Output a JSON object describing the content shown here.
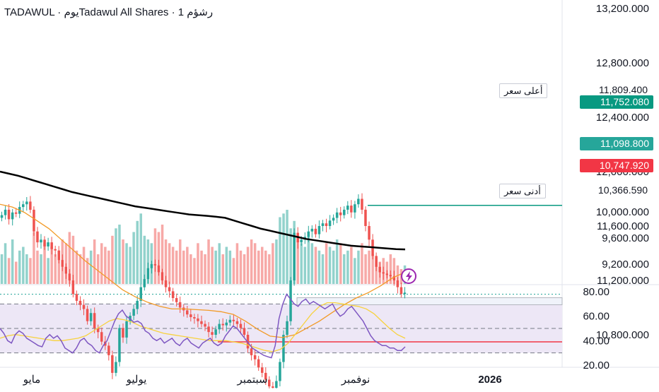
{
  "header": {
    "title": "TADAWUL · يومTadawul All Shares · 1 رشؤم"
  },
  "price_axis": {
    "ticks": [
      "13,200.000",
      "12,800.000",
      "12,400.000",
      "12,000.000",
      "11,600.000",
      "11,200.000",
      "10,800.000",
      "10,000.000",
      "9,600.000",
      "9,200.000"
    ],
    "tick_values": [
      13200,
      12800,
      12400,
      12000,
      11600,
      11200,
      10800,
      10000,
      9600,
      9200
    ]
  },
  "rsi_axis": {
    "ticks": [
      "80.00",
      "60.00",
      "40.00",
      "20.00"
    ],
    "tick_values": [
      80,
      60,
      40,
      20
    ]
  },
  "time_axis": {
    "labels": [
      "مايو",
      "يوليو",
      "سبتمبر",
      "نوفمبر",
      "2026"
    ]
  },
  "markers": {
    "high_label": "أعلى سعر",
    "high_value": "11,809.400",
    "low_label": "أدنى سعر",
    "low_value": "10,366.590",
    "green_level": "11,752.080",
    "last_price": "11,098.800",
    "red_level": "10,747.920"
  },
  "colors": {
    "up": "#26a69a",
    "down": "#ef5350",
    "ma_long": "#000000",
    "ma_short": "#f29a26",
    "rsi_line": "#7e57c2",
    "rsi_ma": "#f7d23e",
    "rsi_band": "#ede7f6",
    "green_level": "#089981",
    "red_level": "#f23645"
  },
  "chart_data": {
    "type": "candlestick",
    "title": "TADAWUL · Tadawul All Shares · 1D",
    "ylim": [
      9000,
      13300
    ],
    "x_labels": [
      "مايو",
      "يوليو",
      "سبتمبر",
      "نوفمبر",
      "2026"
    ],
    "high": 11809.4,
    "low": 10366.59,
    "last": 11098.8,
    "levels": [
      11752.08,
      10747.92
    ],
    "closes": [
      11680,
      11720,
      11650,
      11700,
      11690,
      11740,
      11760,
      11780,
      11720,
      11560,
      11480,
      11500,
      11450,
      11480,
      11430,
      11420,
      11350,
      11300,
      11250,
      11200,
      11100,
      11050,
      11020,
      10990,
      10900,
      10960,
      10850,
      10820,
      10750,
      10720,
      10650,
      10520,
      10600,
      10850,
      10780,
      10900,
      10940,
      10990,
      11050,
      11150,
      11210,
      11290,
      11320,
      11310,
      11260,
      11200,
      11150,
      11120,
      11070,
      11040,
      11000,
      10980,
      10950,
      10930,
      10920,
      10900,
      10880,
      10860,
      10820,
      10800,
      10840,
      10880,
      10870,
      10890,
      10910,
      10900,
      10880,
      10850,
      10800,
      10700,
      10650,
      10620,
      10560,
      10520,
      10470,
      10420,
      10410,
      10460,
      10600,
      10800,
      10900,
      11200,
      11550,
      11480,
      11500,
      11520,
      11560,
      11580,
      11540,
      11600,
      11620,
      11600,
      11640,
      11660,
      11700,
      11680,
      11720,
      11750,
      11700,
      11760,
      11800,
      11720,
      11600,
      11500,
      11380,
      11300,
      11260,
      11250,
      11240,
      11230,
      11200,
      11150,
      11100,
      11110
    ],
    "ma_long": [
      12000,
      11985,
      11970,
      11950,
      11930,
      11910,
      11890,
      11870,
      11850,
      11835,
      11820,
      11805,
      11790,
      11775,
      11760,
      11745,
      11735,
      11725,
      11715,
      11705,
      11695,
      11685,
      11680,
      11675,
      11668,
      11660,
      11640,
      11620,
      11600,
      11580,
      11565,
      11550,
      11535,
      11520,
      11505,
      11495,
      11485,
      11475,
      11465,
      11455,
      11450,
      11445,
      11440,
      11435,
      11430,
      11428
    ],
    "ma_short": [
      11760,
      11740,
      11700,
      11640,
      11580,
      11500,
      11420,
      11340,
      11270,
      11200,
      11130,
      11080,
      11040,
      11010,
      10990,
      10990,
      10985,
      10980,
      10970,
      10950,
      10900,
      10840,
      10790,
      10780,
      10800,
      10850,
      10900,
      10960,
      11020,
      11070,
      11110,
      11160,
      11220,
      11260
    ],
    "volume_scale": [
      0,
      100
    ],
    "volumes": [
      40,
      55,
      35,
      60,
      30,
      45,
      50,
      40,
      35,
      70,
      45,
      40,
      55,
      35,
      50,
      40,
      45,
      60,
      55,
      70,
      65,
      45,
      40,
      50,
      35,
      45,
      60,
      40,
      55,
      50,
      45,
      65,
      75,
      80,
      60,
      55,
      50,
      70,
      85,
      95,
      65,
      60,
      55,
      75,
      70,
      80,
      60,
      55,
      50,
      45,
      60,
      45,
      50,
      40,
      35,
      55,
      45,
      40,
      60,
      50,
      45,
      55,
      40,
      50,
      45,
      35,
      55,
      45,
      40,
      50,
      60,
      55,
      45,
      50,
      45,
      40,
      55,
      60,
      90,
      95,
      100,
      75,
      85,
      60,
      55,
      50,
      65,
      55,
      50,
      45,
      40,
      55,
      50,
      45,
      60,
      55,
      40,
      45,
      50,
      35,
      45,
      55,
      40,
      45,
      40,
      35,
      30,
      35,
      30,
      40,
      35,
      25,
      20,
      25
    ],
    "rsi_ylim": [
      20,
      82
    ],
    "rsi_bands": [
      70,
      50,
      30
    ],
    "rsi": [
      50,
      46,
      40,
      38,
      45,
      48,
      46,
      42,
      40,
      38,
      36,
      35,
      42,
      45,
      42,
      44,
      40,
      34,
      32,
      30,
      34,
      40,
      42,
      38,
      36,
      32,
      30,
      36,
      40,
      48,
      56,
      62,
      65,
      60,
      58,
      55,
      56,
      54,
      48,
      46,
      42,
      40,
      42,
      38,
      40,
      42,
      38,
      36,
      40,
      42,
      38,
      36,
      34,
      38,
      40,
      42,
      38,
      36,
      38,
      44,
      48,
      52,
      50,
      46,
      42,
      38,
      34,
      32,
      30,
      28,
      27,
      26,
      36,
      58,
      70,
      78,
      74,
      70,
      68,
      72,
      74,
      70,
      72,
      70,
      68,
      66,
      68,
      70,
      64,
      60,
      62,
      66,
      68,
      64,
      60,
      56,
      50,
      44,
      40,
      38,
      36,
      36,
      34,
      34,
      32,
      32,
      35
    ],
    "rsi_ma": [
      42,
      44,
      45,
      44,
      43,
      42,
      41,
      40,
      40,
      41,
      42,
      44,
      48,
      52,
      56,
      58,
      57,
      55,
      52,
      50,
      48,
      46,
      45,
      44,
      43,
      42,
      41,
      40,
      40,
      40,
      39,
      38,
      36,
      34,
      32,
      31,
      33,
      38,
      46,
      54,
      62,
      68,
      71,
      71,
      70,
      69,
      68,
      66,
      62,
      56,
      50,
      45,
      42
    ]
  }
}
